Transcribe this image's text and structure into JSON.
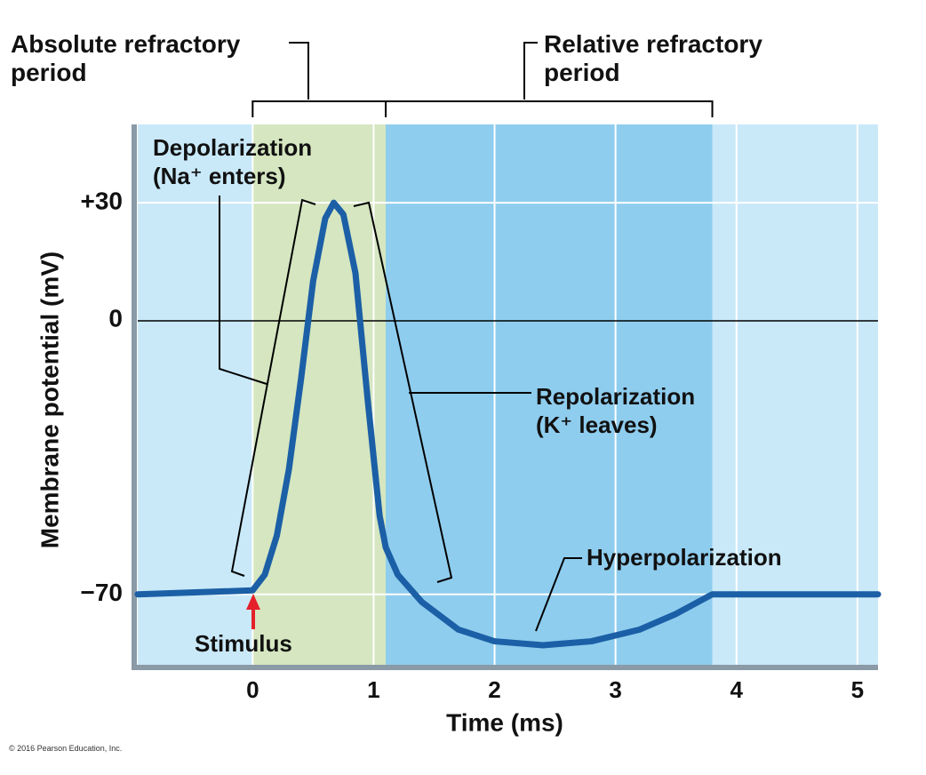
{
  "chart_data": {
    "type": "line",
    "x_label": "Time (ms)",
    "y_label": "Membrane potential (mV)",
    "xlim": [
      -0.95,
      5.17
    ],
    "ylim": [
      -88,
      50
    ],
    "xticks": [
      0,
      1,
      2,
      3,
      4,
      5
    ],
    "yticks": [
      {
        "value": 30,
        "label": "+30"
      },
      0,
      {
        "value": -70,
        "label": "−70"
      }
    ],
    "grid": true,
    "periods": [
      {
        "name": "Absolute refractory period",
        "start": 0,
        "end": 1.1,
        "color": "#d5e6c0"
      },
      {
        "name": "Relative refractory period",
        "start": 1.1,
        "end": 3.8,
        "color": "#8fcdee"
      }
    ],
    "series": [
      {
        "color": "#1b5fa6",
        "x": [
          -0.95,
          0,
          0.1,
          0.2,
          0.3,
          0.4,
          0.5,
          0.6,
          0.67,
          0.75,
          0.85,
          0.95,
          1.05,
          1.1,
          1.2,
          1.4,
          1.7,
          2.0,
          2.4,
          2.8,
          3.2,
          3.5,
          3.8,
          5.17
        ],
        "values": [
          -70,
          -69,
          -65,
          -55,
          -38,
          -15,
          10,
          26,
          30,
          27,
          12,
          -20,
          -50,
          -58,
          -65,
          -72,
          -79,
          -82,
          -83,
          -82,
          -79,
          -75,
          -70,
          -70
        ]
      }
    ],
    "annotations": [
      "Depolarization (Na⁺ enters)",
      "Repolarization (K⁺ leaves)",
      "Hyperpolarization",
      "Stimulus"
    ]
  },
  "credit": "© 2016 Pearson Education, Inc."
}
